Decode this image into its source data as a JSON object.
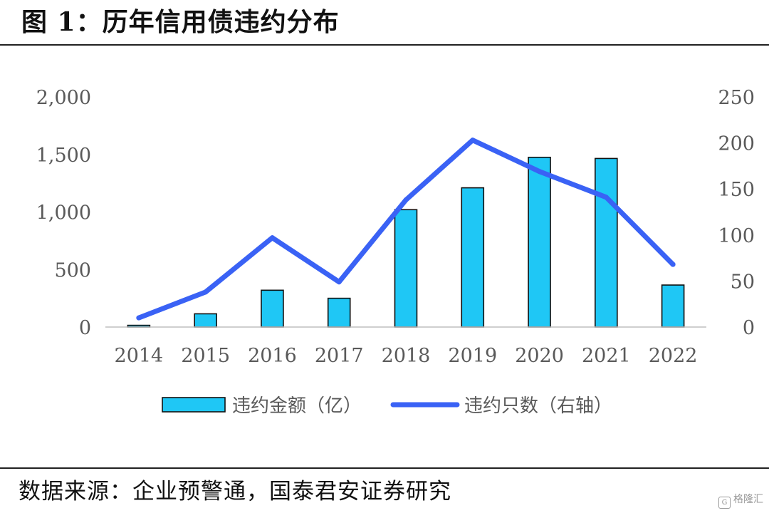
{
  "header": {
    "title": "图 1：历年信用债违约分布"
  },
  "footer": {
    "source": "数据来源：企业预警通，国泰君安证券研究"
  },
  "watermark": {
    "icon": "gelonghui-logo-icon",
    "text": "格隆汇"
  },
  "colors": {
    "bar": "#1fc7f5",
    "bar_border": "#111111",
    "line": "#3a62f5",
    "axis": "#bfbfbf"
  },
  "chart_data": {
    "type": "bar+line",
    "categories": [
      "2014",
      "2015",
      "2016",
      "2017",
      "2018",
      "2019",
      "2020",
      "2021",
      "2022"
    ],
    "series": [
      {
        "name": "违约金额（亿）",
        "type": "bar",
        "axis": "left",
        "values": [
          15,
          115,
          320,
          250,
          1020,
          1210,
          1475,
          1465,
          365
        ]
      },
      {
        "name": "违约只数（右轴）",
        "type": "line",
        "axis": "right",
        "values": [
          10,
          38,
          97,
          49,
          138,
          203,
          169,
          141,
          68
        ]
      }
    ],
    "y_left": {
      "ylim": [
        0,
        2000
      ],
      "ticks": [
        0,
        500,
        1000,
        1500,
        2000
      ],
      "tick_labels": [
        "0",
        "500",
        "1,000",
        "1,500",
        "2,000"
      ]
    },
    "y_right": {
      "ylim": [
        0,
        250
      ],
      "ticks": [
        0,
        50,
        100,
        150,
        200,
        250
      ],
      "tick_labels": [
        "0",
        "50",
        "100",
        "150",
        "200",
        "250"
      ]
    },
    "grid": false,
    "legend_position": "bottom"
  }
}
